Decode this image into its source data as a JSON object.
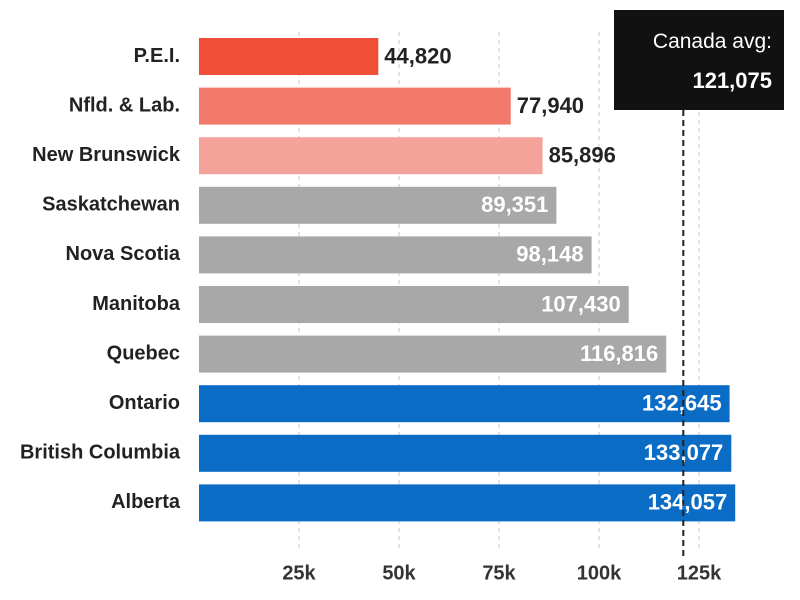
{
  "chart_data": {
    "type": "bar",
    "orientation": "horizontal",
    "categories": [
      "P.E.I.",
      "Nfld. & Lab.",
      "New Brunswick",
      "Saskatchewan",
      "Nova Scotia",
      "Manitoba",
      "Quebec",
      "Ontario",
      "British Columbia",
      "Alberta"
    ],
    "values": [
      44820,
      77940,
      85896,
      89351,
      98148,
      107430,
      116816,
      132645,
      133077,
      134057
    ],
    "value_labels": [
      "44,820",
      "77,940",
      "85,896",
      "89,351",
      "98,148",
      "107,430",
      "116,816",
      "132,645",
      "133,077",
      "134,057"
    ],
    "bar_colors": [
      "#f04e37",
      "#f27a6b",
      "#f5a39a",
      "#a8a8a8",
      "#a8a8a8",
      "#a8a8a8",
      "#a8a8a8",
      "#0a6cc4",
      "#0a6cc4",
      "#0a6cc4"
    ],
    "label_colors": [
      "#222222",
      "#222222",
      "#222222",
      "#ffffff",
      "#ffffff",
      "#ffffff",
      "#ffffff",
      "#ffffff",
      "#ffffff",
      "#ffffff"
    ],
    "label_position": [
      "outside",
      "outside",
      "outside",
      "inside",
      "inside",
      "inside",
      "inside",
      "inside",
      "inside",
      "inside"
    ],
    "x_ticks": [
      25000,
      50000,
      75000,
      100000,
      125000
    ],
    "x_tick_labels": [
      "25k",
      "50k",
      "75k",
      "100k",
      "125k"
    ],
    "xlim": [
      0,
      140000
    ],
    "grid": "vertical dashed",
    "title": "",
    "xlabel": "",
    "ylabel": "",
    "reference_line": {
      "value": 121075,
      "label": "Canada avg:",
      "value_label": "121,075",
      "style": "dashed",
      "box_color": "#111111"
    }
  }
}
